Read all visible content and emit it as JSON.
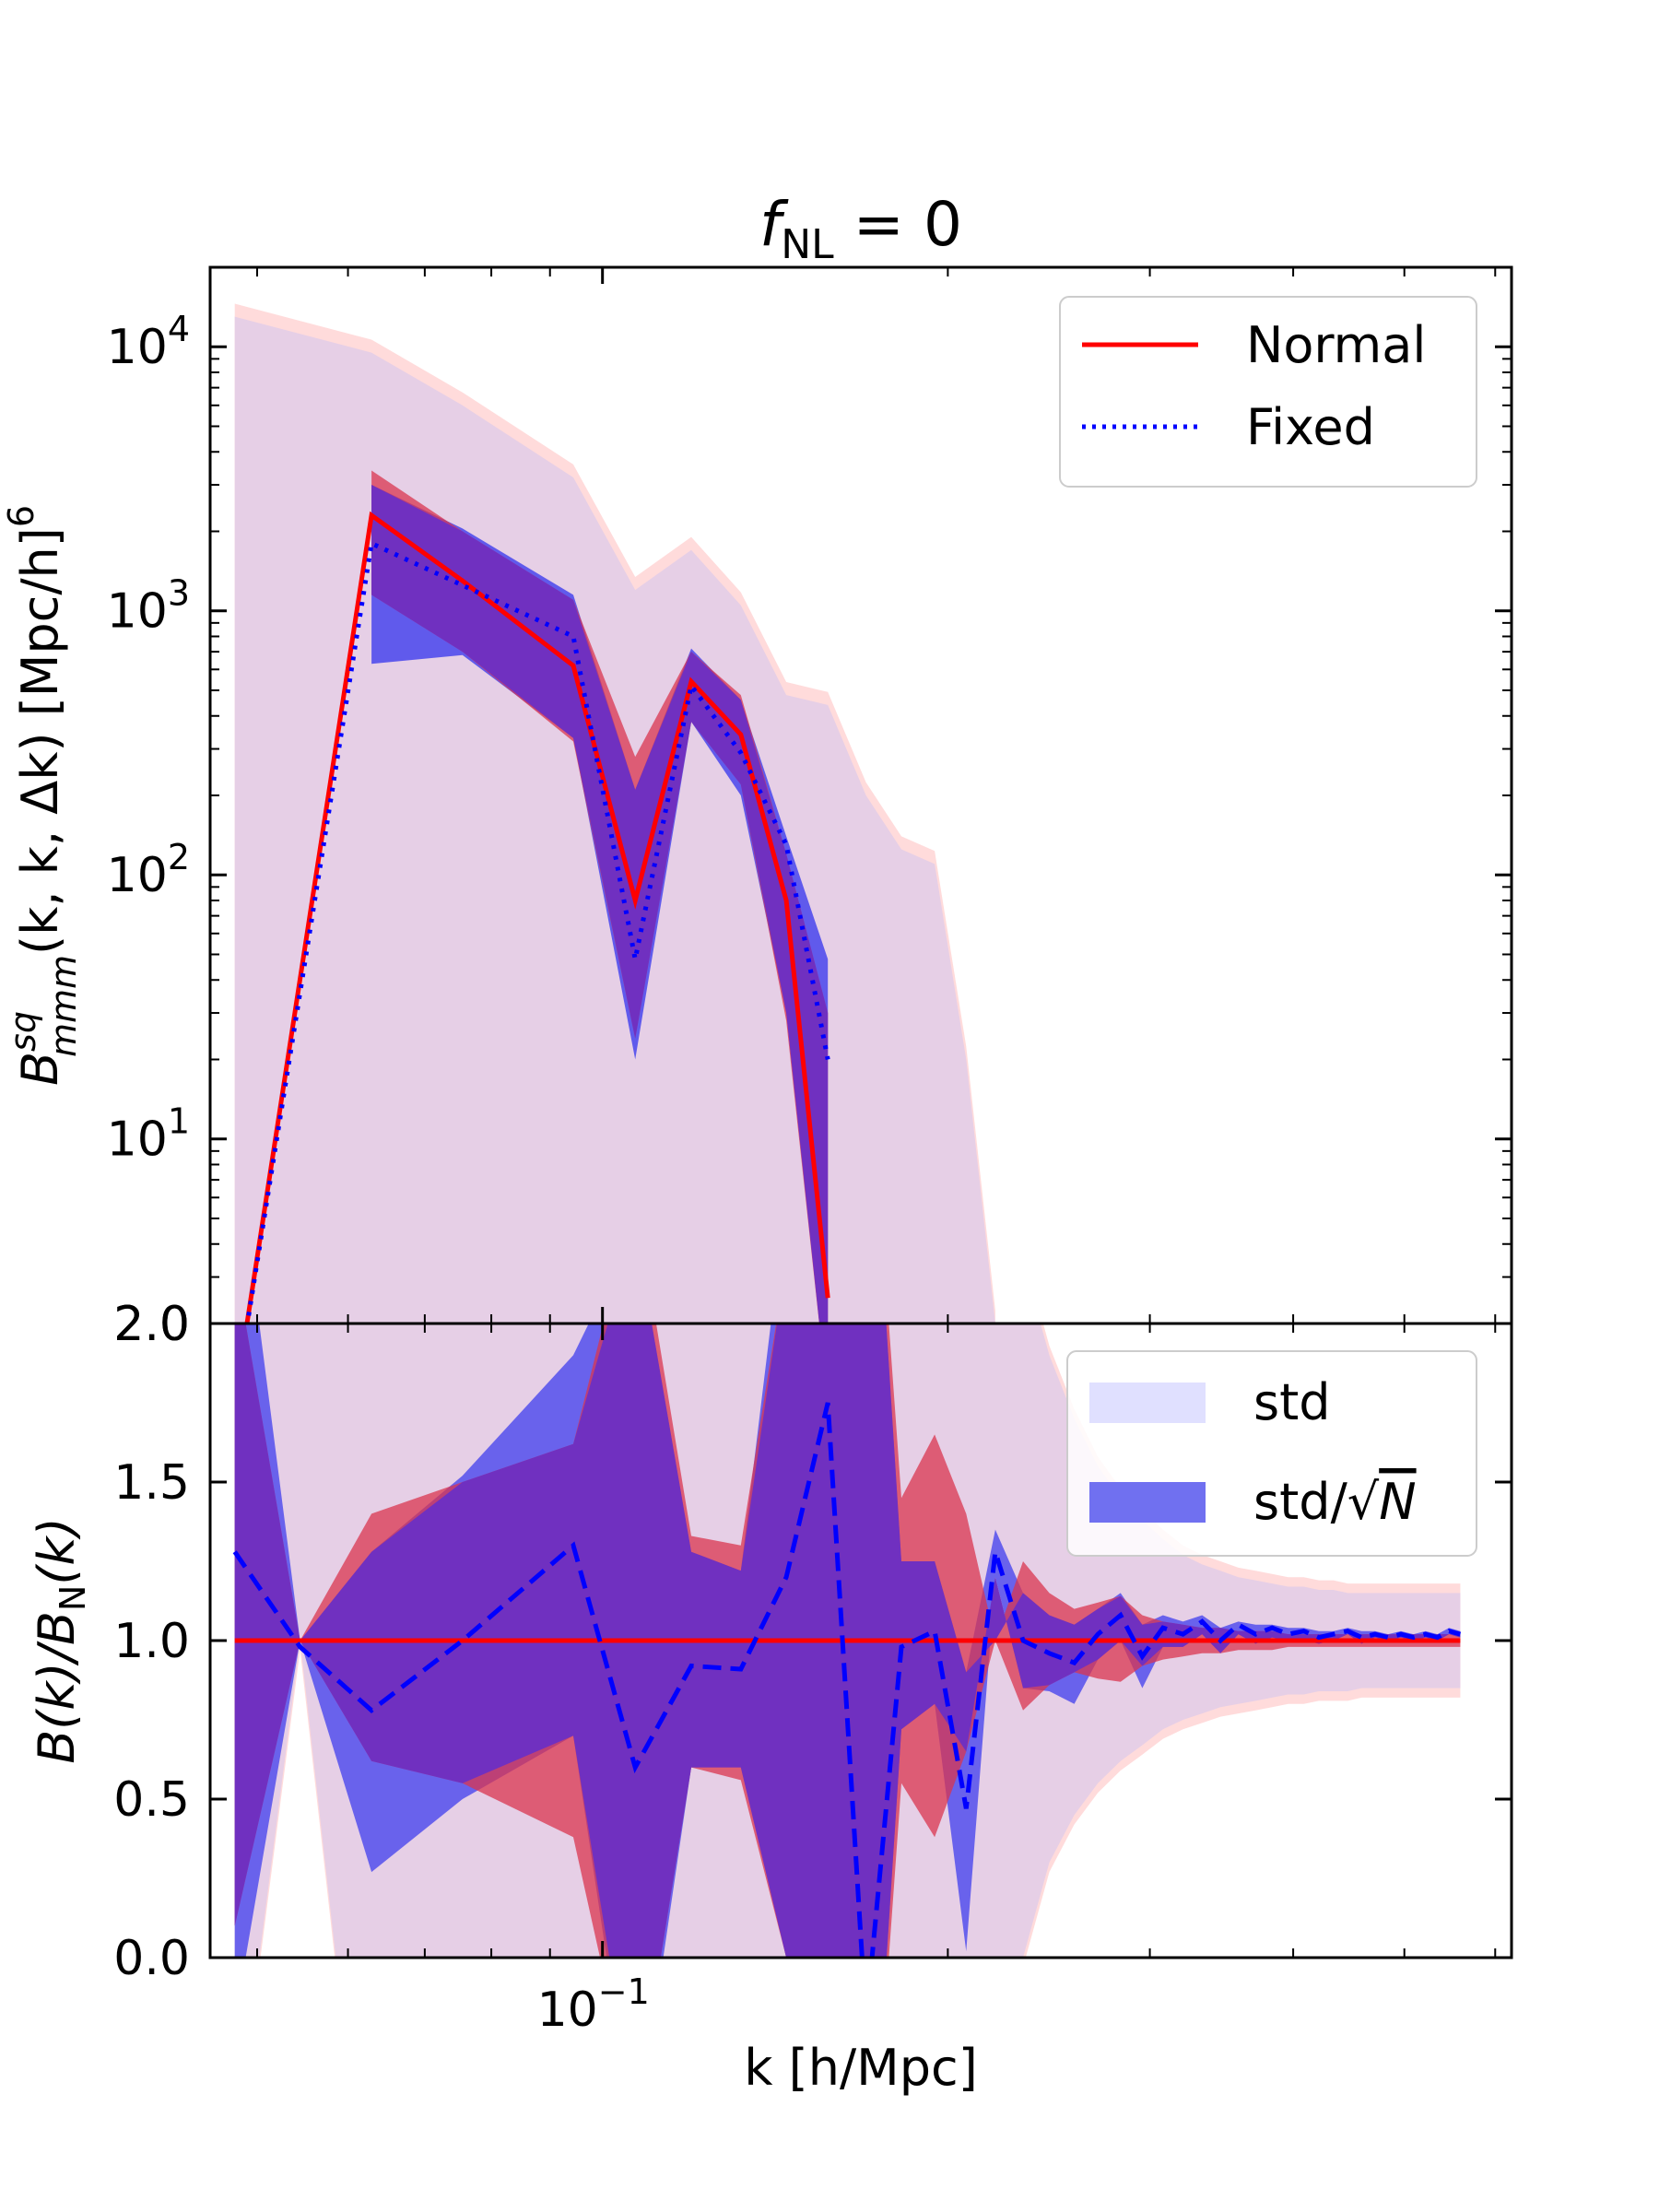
{
  "title": {
    "main": "f",
    "sub": "NL",
    "rest": " = 0"
  },
  "colors": {
    "normal": "#ff0000",
    "fixed": "#0000ff",
    "std_normal": "#ffcccc",
    "std_fixed": "#cccfff",
    "sem_normal": "#d9364f",
    "sem_fixed": "#3333ee",
    "overlap_std": "#e6cfe6",
    "overlap_sem": "#7030c0"
  },
  "chart_data": [
    {
      "id": "top",
      "type": "line",
      "xscale": "log",
      "yscale": "log",
      "xlim": [
        0.0455,
        0.62
      ],
      "ylim": [
        2.0,
        20000
      ],
      "yticks": [
        {
          "value": 10,
          "base": "10",
          "exp": "1"
        },
        {
          "value": 100,
          "base": "10",
          "exp": "2"
        },
        {
          "value": 1000,
          "base": "10",
          "exp": "3"
        },
        {
          "value": 10000,
          "base": "10",
          "exp": "4"
        }
      ],
      "bottom_label": "2.0",
      "ylabel": {
        "b": "B",
        "sup": "sq",
        "sub": "mmm",
        "args": "(k, k, Δk) [Mpc/h]",
        "power": "6"
      },
      "x": [
        0.0478,
        0.0629,
        0.0755,
        0.0943,
        0.1068,
        0.1195,
        0.132,
        0.1446,
        0.1572,
        0.1697,
        0.1822,
        0.1948,
        0.2075,
        0.22
      ],
      "series": [
        {
          "name": "Normal",
          "style": "solid",
          "values": [
            1.0,
            2300,
            1300,
            620,
            80,
            540,
            340,
            80,
            2.5,
            null,
            null,
            null,
            null,
            null
          ]
        },
        {
          "name": "Fixed",
          "style": "dotted",
          "values": [
            1.0,
            1800,
            1250,
            800,
            48,
            520,
            290,
            130,
            20,
            null,
            null,
            null,
            null,
            null
          ]
        }
      ],
      "std_band": {
        "x": [
          0.0478,
          0.0629,
          0.0755,
          0.0943,
          0.1068,
          0.1195,
          0.132,
          0.1446,
          0.1572,
          0.1697,
          0.1822,
          0.1948,
          0.2075,
          0.22
        ],
        "upper": [
          13000,
          9500,
          6000,
          3200,
          1200,
          1700,
          1050,
          480,
          440,
          200,
          125,
          110,
          20,
          2.0
        ]
      },
      "sem_band_normal": {
        "x": [
          0.0629,
          0.0755,
          0.0943,
          0.1068,
          0.1195,
          0.132,
          0.1446,
          0.1572
        ],
        "upper": [
          3400,
          2000,
          1100,
          280,
          700,
          480,
          120,
          30
        ],
        "lower": [
          1150,
          700,
          320,
          24,
          380,
          220,
          28,
          1.0
        ]
      },
      "sem_band_fixed": {
        "x": [
          0.0629,
          0.0755,
          0.0943,
          0.1068,
          0.1195,
          0.132,
          0.1446,
          0.1572
        ],
        "upper": [
          3000,
          2050,
          1150,
          210,
          720,
          460,
          140,
          48
        ],
        "lower": [
          630,
          680,
          330,
          20,
          380,
          200,
          30,
          1.0
        ]
      },
      "legend": {
        "position": "top-right",
        "items": [
          "Normal",
          "Fixed"
        ]
      }
    },
    {
      "id": "bottom",
      "type": "line",
      "xscale": "log",
      "xlim": [
        0.0455,
        0.62
      ],
      "ylim": [
        0.0,
        2.0
      ],
      "yticks": [
        "0.0",
        "0.5",
        "1.0",
        "1.5",
        "2.0"
      ],
      "xticks": [
        {
          "value": 0.1,
          "base": "10",
          "exp": "−1"
        }
      ],
      "xlabel": "k [h/Mpc]",
      "ylabel": {
        "a": "B(k)/B",
        "sub": "N",
        "b": "(k)"
      },
      "x": [
        0.0478,
        0.0545,
        0.0629,
        0.0755,
        0.0943,
        0.1068,
        0.1195,
        0.132,
        0.1446,
        0.1572,
        0.1697,
        0.1822,
        0.1948,
        0.2075,
        0.22,
        0.2326,
        0.2452,
        0.2578,
        0.2703,
        0.2829,
        0.2955,
        0.308,
        0.3206,
        0.3332,
        0.3457,
        0.3583,
        0.3709,
        0.3834,
        0.396,
        0.4086,
        0.4212,
        0.4337,
        0.4463,
        0.4589,
        0.4714,
        0.484,
        0.4966,
        0.5092,
        0.5217,
        0.5343,
        0.5469,
        0.5594
      ],
      "series": [
        {
          "name": "Normal",
          "style": "solid",
          "values": [
            1.0,
            1.0,
            1.0,
            1.0,
            1.0,
            1.0,
            1.0,
            1.0,
            1.0,
            1.0,
            1.0,
            1.0,
            1.0,
            1.0,
            1.0,
            1.0,
            1.0,
            1.0,
            1.0,
            1.0,
            1.0,
            1.0,
            1.0,
            1.0,
            1.0,
            1.0,
            1.0,
            1.0,
            1.0,
            1.0,
            1.0,
            1.0,
            1.0,
            1.0,
            1.0,
            1.0,
            1.0,
            1.0,
            1.0,
            1.0,
            1.0,
            1.0
          ]
        },
        {
          "name": "Fixed",
          "style": "dashed",
          "values": [
            1.28,
            0.98,
            0.78,
            1.0,
            1.3,
            0.6,
            0.92,
            0.91,
            1.2,
            1.75,
            -0.2,
            0.98,
            1.03,
            0.47,
            1.28,
            1.0,
            0.96,
            0.93,
            1.02,
            1.08,
            0.95,
            1.04,
            1.02,
            1.06,
            1.0,
            1.05,
            1.02,
            1.04,
            1.02,
            1.03,
            1.01,
            1.02,
            1.03,
            1.01,
            1.02,
            1.01,
            1.02,
            1.01,
            1.02,
            1.01,
            1.03,
            1.02
          ]
        }
      ],
      "std_band": {
        "upper": [
          2.6,
          3.0,
          3.0,
          3.0,
          3.0,
          3.0,
          3.0,
          3.0,
          3.0,
          3.0,
          3.0,
          3.0,
          3.0,
          3.0,
          2.8,
          2.2,
          1.9,
          1.7,
          1.55,
          1.45,
          1.38,
          1.32,
          1.27,
          1.24,
          1.22,
          1.2,
          1.19,
          1.18,
          1.17,
          1.17,
          1.16,
          1.16,
          1.15,
          1.15,
          1.15,
          1.15,
          1.15,
          1.15,
          1.15,
          1.15,
          1.15,
          1.15
        ],
        "lower": [
          -0.6,
          1.0,
          -1.0,
          -1.0,
          -1.0,
          -1.0,
          -1.0,
          -1.0,
          -1.0,
          -1.0,
          -1.0,
          -1.0,
          -1.0,
          -1.0,
          -0.2,
          0.0,
          0.3,
          0.45,
          0.55,
          0.62,
          0.67,
          0.72,
          0.75,
          0.77,
          0.79,
          0.8,
          0.81,
          0.82,
          0.83,
          0.83,
          0.84,
          0.84,
          0.84,
          0.85,
          0.85,
          0.85,
          0.85,
          0.85,
          0.85,
          0.85,
          0.85,
          0.85
        ]
      },
      "sem_band_normal": {
        "upper": [
          2.2,
          1.0,
          1.4,
          1.5,
          1.62,
          2.4,
          1.33,
          1.3,
          2.2,
          3.0,
          3.0,
          1.45,
          1.65,
          1.4,
          1.0,
          1.25,
          1.15,
          1.1,
          1.12,
          1.14,
          1.08,
          1.06,
          1.05,
          1.04,
          1.04,
          1.03,
          1.03,
          1.03,
          1.02,
          1.02,
          1.02,
          1.02,
          1.02,
          1.02,
          1.02,
          1.02,
          1.02,
          1.02,
          1.02,
          1.02,
          1.02,
          1.02
        ],
        "lower": [
          0.1,
          1.0,
          0.62,
          0.55,
          0.38,
          -0.5,
          0.6,
          0.56,
          0.0,
          -1.0,
          -1.0,
          0.55,
          0.38,
          0.65,
          1.0,
          0.78,
          0.86,
          0.9,
          0.88,
          0.87,
          0.92,
          0.94,
          0.95,
          0.96,
          0.96,
          0.97,
          0.97,
          0.97,
          0.98,
          0.98,
          0.98,
          0.98,
          0.98,
          0.98,
          0.98,
          0.98,
          0.98,
          0.98,
          0.98,
          0.98,
          0.98,
          0.98
        ]
      },
      "sem_band_fixed": {
        "upper": [
          2.6,
          1.0,
          1.28,
          1.52,
          1.9,
          2.3,
          1.28,
          1.22,
          2.4,
          3.0,
          3.0,
          1.25,
          1.25,
          0.9,
          1.35,
          1.15,
          1.08,
          1.05,
          1.1,
          1.15,
          1.05,
          1.08,
          1.06,
          1.08,
          1.04,
          1.06,
          1.05,
          1.05,
          1.04,
          1.04,
          1.03,
          1.03,
          1.04,
          1.03,
          1.03,
          1.02,
          1.03,
          1.02,
          1.03,
          1.02,
          1.04,
          1.03
        ],
        "lower": [
          -0.2,
          1.0,
          0.27,
          0.5,
          0.7,
          -0.6,
          0.6,
          0.6,
          0.0,
          -1.0,
          -1.0,
          0.72,
          0.8,
          0.02,
          1.2,
          0.85,
          0.84,
          0.8,
          0.94,
          1.0,
          0.85,
          0.98,
          0.98,
          1.02,
          0.96,
          1.02,
          0.99,
          1.01,
          1.0,
          1.0,
          0.99,
          1.0,
          1.02,
          0.99,
          1.01,
          1.0,
          1.01,
          1.0,
          1.01,
          1.0,
          1.02,
          1.01
        ]
      },
      "legend": {
        "position": "top-right",
        "items": [
          "std",
          "std/√N"
        ],
        "sqrt": "√",
        "n": "N",
        "std": "std",
        "std_slash": "std/"
      }
    }
  ]
}
